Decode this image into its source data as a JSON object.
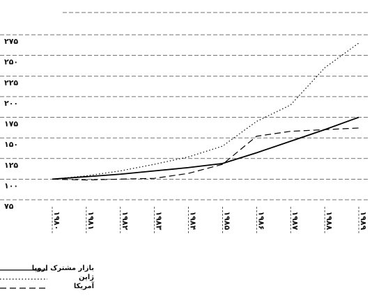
{
  "chart_data": {
    "type": "line",
    "categories": [
      "۱۹۸۰",
      "۱۹۸۱",
      "۱۹۸۲",
      "۱۹۸۳",
      "۱۹۸۴",
      "۱۹۸۵",
      "۱۹۸۶",
      "۱۹۸۷",
      "۱۹۸۸",
      "۱۹۸۹"
    ],
    "series": [
      {
        "name": "بازار مشترک اروپا",
        "color": "#000000",
        "dash": "solid",
        "values": [
          100,
          103,
          106,
          110,
          114,
          119,
          132,
          146,
          160,
          175
        ]
      },
      {
        "name": "ژاپن",
        "color": "#000000",
        "dash": "dotted",
        "values": [
          100,
          104,
          110,
          118,
          127,
          140,
          170,
          190,
          235,
          265
        ]
      },
      {
        "name": "آمریکا",
        "color": "#000000",
        "dash": "dashed",
        "values": [
          100,
          99,
          100,
          101,
          107,
          118,
          152,
          158,
          160,
          162
        ]
      }
    ],
    "ylim": [
      75,
      275
    ],
    "yticks": [
      {
        "value": 75,
        "label": "۷۵"
      },
      {
        "value": 100,
        "label": "۱۰۰"
      },
      {
        "value": 125,
        "label": "۱۲۵"
      },
      {
        "value": 150,
        "label": "۱۵۰"
      },
      {
        "value": 175,
        "label": "۱۷۵"
      },
      {
        "value": 200,
        "label": "۲۰۰"
      },
      {
        "value": 225,
        "label": "۲۲۵"
      },
      {
        "value": 250,
        "label": "۲۵۰"
      },
      {
        "value": 275,
        "label": "۲۷۵"
      }
    ],
    "grid": true,
    "legend": "bottom-left"
  }
}
